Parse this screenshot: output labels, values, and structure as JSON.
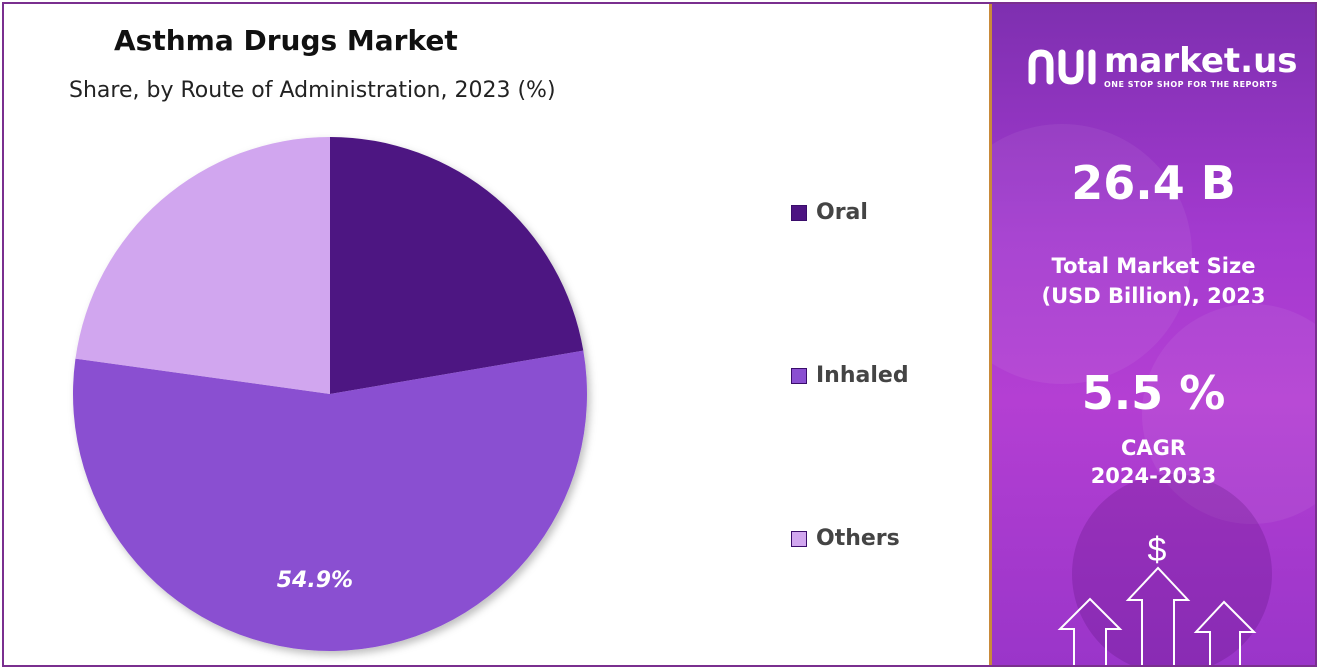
{
  "chart_data": {
    "type": "pie",
    "title": "Asthma Drugs Market",
    "subtitle": "Share, by Route of Administration, 2023 (%)",
    "categories": [
      "Oral",
      "Inhaled",
      "Others"
    ],
    "values": [
      22.3,
      54.9,
      22.8
    ],
    "colors": [
      "#4d1482",
      "#8a4fd1",
      "#d1a6ef"
    ],
    "data_labels": [
      "",
      "54.9%",
      ""
    ],
    "legend": "right"
  },
  "branding": {
    "logo_name": "market.us",
    "logo_tagline": "ONE STOP SHOP FOR THE REPORTS"
  },
  "stats": {
    "market_size_value": "26.4 B",
    "market_size_label_line1": "Total Market Size",
    "market_size_label_line2": "(USD Billion), 2023",
    "cagr_value": "5.5 %",
    "cagr_label_line1": "CAGR",
    "cagr_label_line2": "2024-2033"
  },
  "decor": {
    "dollar_symbol": "$",
    "icon": "growth-arrows-icon"
  }
}
